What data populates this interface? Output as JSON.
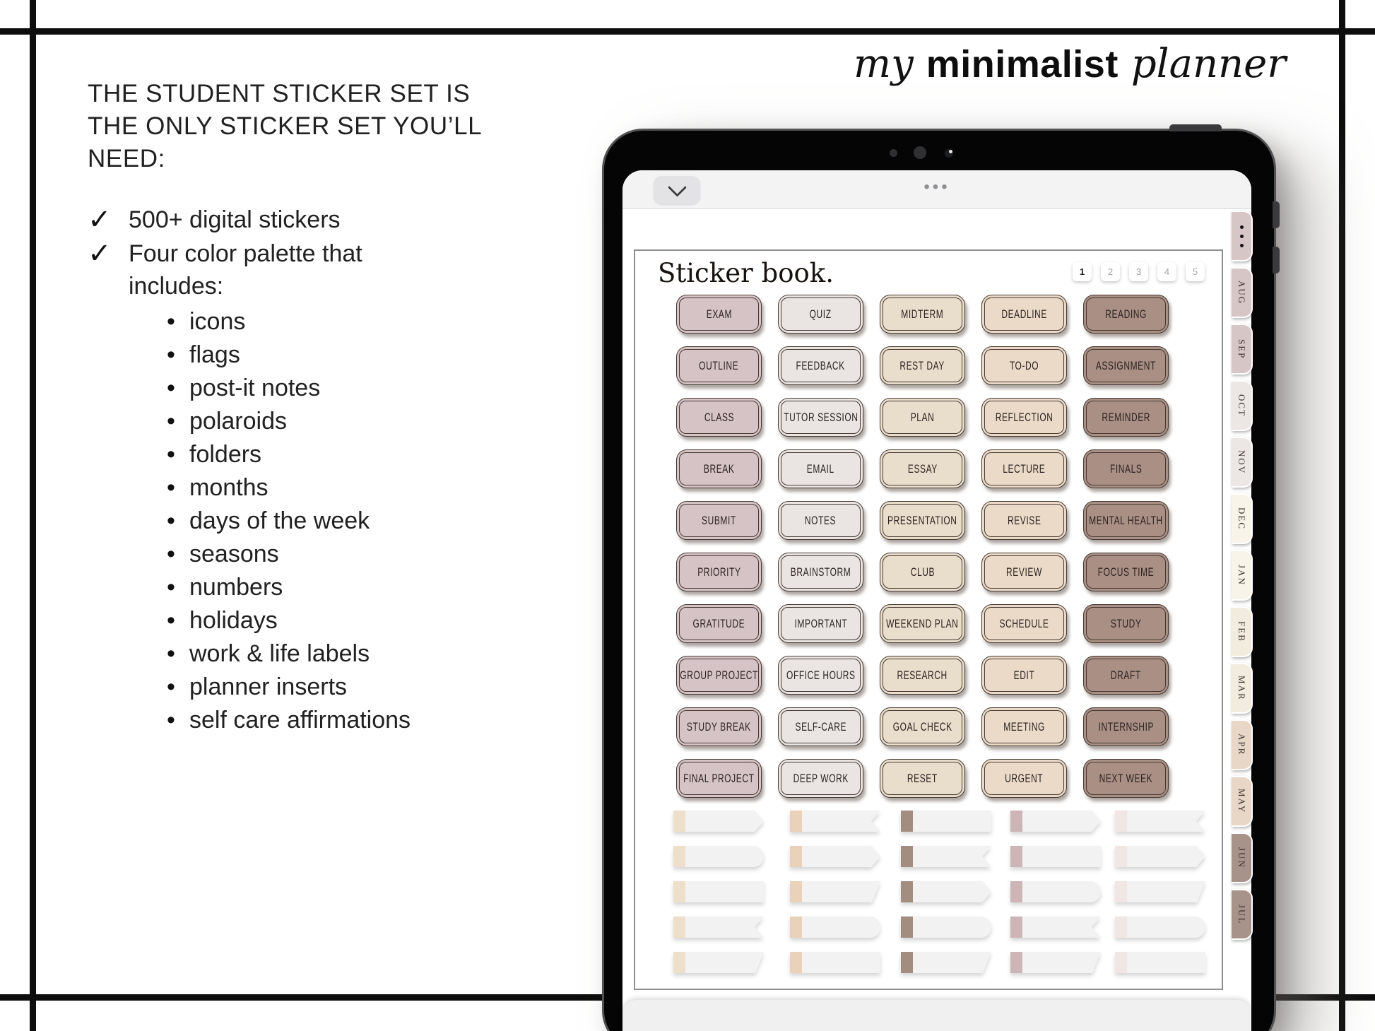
{
  "logo": {
    "part1": "my",
    "part2": "minimalist",
    "part3": "planner"
  },
  "left_panel": {
    "heading_lines": [
      "THE STUDENT STICKER SET IS",
      "THE ONLY STICKER SET YOU’LL",
      "NEED:"
    ],
    "check_glyph": "✓",
    "checklist": [
      "500+ digital stickers",
      "Four color palette that includes:"
    ],
    "bullet_glyph": "•",
    "bullets": [
      "icons",
      "flags",
      "post-it notes",
      "polaroids",
      "folders",
      "months",
      "days of the week",
      "seasons",
      "numbers",
      "holidays",
      "work & life labels",
      "planner inserts",
      "self care affirmations"
    ]
  },
  "tablet": {
    "toolbar": {
      "handle_glyph": "•••"
    },
    "page": {
      "title": "Sticker book.",
      "page_numbers": [
        "1",
        "2",
        "3",
        "4",
        "5"
      ],
      "active_page": "1",
      "sticker_column_colors": [
        "#d6c3c5",
        "#eae5e3",
        "#e9ddcb",
        "#ebdac8",
        "#a98f84"
      ],
      "sticker_border_color": "#463a33",
      "sticker_text_color": "#2b2320",
      "sticker_rows": [
        [
          "EXAM",
          "QUIZ",
          "MIDTERM",
          "DEADLINE",
          "READING"
        ],
        [
          "OUTLINE",
          "FEEDBACK",
          "REST DAY",
          "TO-DO",
          "ASSIGNMENT"
        ],
        [
          "CLASS",
          "TUTOR SESSION",
          "PLAN",
          "REFLECTION",
          "REMINDER"
        ],
        [
          "BREAK",
          "EMAIL",
          "ESSAY",
          "LECTURE",
          "FINALS"
        ],
        [
          "SUBMIT",
          "NOTES",
          "PRESENTATION",
          "REVISE",
          "MENTAL HEALTH"
        ],
        [
          "PRIORITY",
          "BRAINSTORM",
          "CLUB",
          "REVIEW",
          "FOCUS TIME"
        ],
        [
          "GRATITUDE",
          "IMPORTANT",
          "WEEKEND PLAN",
          "SCHEDULE",
          "STUDY"
        ],
        [
          "GROUP PROJECT",
          "OFFICE HOURS",
          "RESEARCH",
          "EDIT",
          "DRAFT"
        ],
        [
          "STUDY BREAK",
          "SELF-CARE",
          "GOAL CHECK",
          "MEETING",
          "INTERNSHIP"
        ],
        [
          "FINAL PROJECT",
          "DEEP WORK",
          "RESET",
          "URGENT",
          "NEXT WEEK"
        ]
      ],
      "flag_tab_colors": [
        "#eedfca",
        "#ead1ba",
        "#a38d81",
        "#cdb5b7",
        "#f0e6e3"
      ],
      "flag_body_color": "#f2f2f2",
      "flag_shapes": [
        [
          "pointed",
          "notched",
          "straight",
          "pointed",
          "notched"
        ],
        [
          "rounded",
          "pointed",
          "notched",
          "straight",
          "pointed"
        ],
        [
          "straight",
          "angled",
          "pointed",
          "rounded",
          "angled"
        ],
        [
          "notched",
          "rounded",
          "rounded",
          "notched",
          "rounded"
        ],
        [
          "angled",
          "straight",
          "angled",
          "angled",
          "straight"
        ]
      ]
    },
    "side_tabs": [
      {
        "label": "",
        "type": "menu",
        "color": "#d6c6c6"
      },
      {
        "label": "AUG",
        "color": "#d6c6c6"
      },
      {
        "label": "SEP",
        "color": "#d6c6c6"
      },
      {
        "label": "OCT",
        "color": "#ece6e4"
      },
      {
        "label": "NOV",
        "color": "#ece6e4"
      },
      {
        "label": "DEC",
        "color": "#f8f4ea"
      },
      {
        "label": "JAN",
        "color": "#f8f4ea"
      },
      {
        "label": "FEB",
        "color": "#f2ecdf"
      },
      {
        "label": "MAR",
        "color": "#f2ecdf"
      },
      {
        "label": "APR",
        "color": "#e8d6c6"
      },
      {
        "label": "MAY",
        "color": "#e8d6c6"
      },
      {
        "label": "JUN",
        "color": "#a8938a"
      },
      {
        "label": "JUL",
        "color": "#a8938a"
      }
    ]
  }
}
